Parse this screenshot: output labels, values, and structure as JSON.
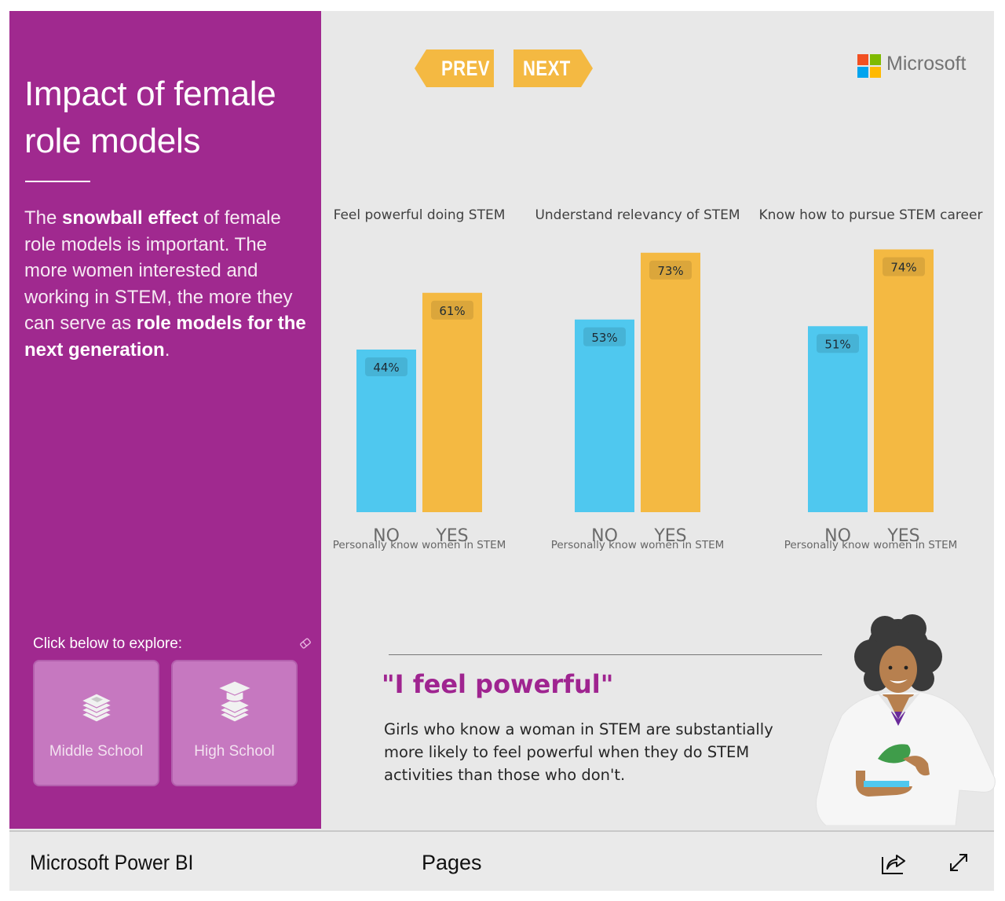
{
  "panel": {
    "title_line1": "Impact of female",
    "title_line2": "role models",
    "body": [
      {
        "text": "The ",
        "bold": false
      },
      {
        "text": "snowball effect",
        "bold": true
      },
      {
        "text": " of female role models is important. The more women interested and working in STEM, the more they can serve as ",
        "bold": false
      },
      {
        "text": "role models for the next generation",
        "bold": true
      },
      {
        "text": ".",
        "bold": false
      }
    ],
    "explore_label": "Click below to explore:",
    "eraser_icon": "eraser-icon",
    "buttons": [
      {
        "label": "Middle School",
        "icon": "books-icon"
      },
      {
        "label": "High School",
        "icon": "graduation-books-icon"
      }
    ],
    "background_color": "#a0298f"
  },
  "nav": {
    "prev_label": "PREV",
    "next_label": "NEXT",
    "button_color": "#f4b942"
  },
  "logo": {
    "word": "Microsoft",
    "colors": [
      "#f25022",
      "#7fba00",
      "#00a4ef",
      "#ffb900"
    ]
  },
  "chart_data": [
    {
      "type": "bar",
      "title": "Feel powerful doing STEM",
      "categories": [
        "NO",
        "YES"
      ],
      "values": [
        44,
        61
      ],
      "labels": [
        "44%",
        "61%"
      ],
      "xlabel": "Personally know women in STEM",
      "ylabel": "",
      "colors": [
        "#4fc8ef",
        "#f4b942"
      ]
    },
    {
      "type": "bar",
      "title": "Understand relevancy of STEM",
      "categories": [
        "NO",
        "YES"
      ],
      "values": [
        53,
        73
      ],
      "labels": [
        "53%",
        "73%"
      ],
      "xlabel": "Personally know women in STEM",
      "ylabel": "",
      "colors": [
        "#4fc8ef",
        "#f4b942"
      ]
    },
    {
      "type": "bar",
      "title": "Know how to pursue STEM career",
      "categories": [
        "NO",
        "YES"
      ],
      "values": [
        51,
        74
      ],
      "labels": [
        "51%",
        "74%"
      ],
      "xlabel": "Personally know women in STEM",
      "ylabel": "",
      "colors": [
        "#4fc8ef",
        "#f4b942"
      ]
    }
  ],
  "quote": {
    "title": "\"I feel powerful\"",
    "body": "Girls who know a woman in STEM are substantially more likely to feel powerful when they do STEM activities than those who don't.",
    "accent_color": "#9f2490"
  },
  "illustration": {
    "icon": "scientist-woman-illustration"
  },
  "footer": {
    "brand": "Microsoft Power BI",
    "pages_label": "Pages",
    "share_icon": "share-icon",
    "expand_icon": "expand-icon"
  }
}
